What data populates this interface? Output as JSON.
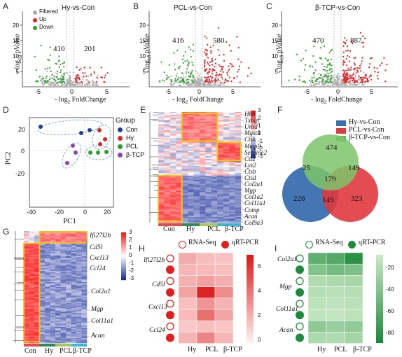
{
  "panels": {
    "A": {
      "letter": "A",
      "title": "Hy-vs-Con",
      "legend": [
        {
          "label": "Filtered",
          "color": "#a8a8a8"
        },
        {
          "label": "Up",
          "color": "#e02020"
        },
        {
          "label": "Down",
          "color": "#2f9e2f"
        }
      ],
      "down_count": "410",
      "up_count": "201",
      "xticks": [
        "-5",
        "0",
        "5"
      ],
      "yticks": [
        "5",
        "10",
        "15",
        "20"
      ]
    },
    "B": {
      "letter": "B",
      "title": "PCL-vs-Con",
      "down_count": "416",
      "up_count": "580",
      "xticks": [
        "-5",
        "0",
        "5"
      ],
      "yticks": [
        "5",
        "10",
        "15",
        "20"
      ]
    },
    "C": {
      "letter": "C",
      "title": "β-TCP-vs-Con",
      "down_count": "470",
      "up_count": "887",
      "xticks": [
        "-5",
        "0",
        "5"
      ],
      "yticks": [
        "5",
        "10",
        "15",
        "20"
      ]
    },
    "D": {
      "letter": "D",
      "legend_title": "Group",
      "groups": [
        {
          "label": "Con",
          "color": "#1f3f8f"
        },
        {
          "label": "Hy",
          "color": "#d62728"
        },
        {
          "label": "PCL",
          "color": "#2ca02c"
        },
        {
          "label": "β-TCP",
          "color": "#8e44ad"
        }
      ],
      "xticks": [
        "-40",
        "-20",
        "0",
        "20"
      ],
      "yticks": [
        "-20",
        "0",
        "20"
      ],
      "xlabel": "PC1",
      "ylabel": "PC2"
    },
    "E": {
      "letter": "E",
      "genes": [
        "Hbb",
        "Txnip",
        "Urod",
        "Mgst3",
        "Ctsk",
        "Mmp9",
        "Serpine2",
        "Ctsz",
        "Lyz2",
        "Ctsb",
        "Ctsd",
        "Col2a1",
        "Mgp",
        "Col1a2",
        "Col11a1",
        "Comp",
        "Acan",
        "Col9a3"
      ],
      "groups": [
        "Con",
        "Hy",
        "PCL",
        "β-TCP"
      ],
      "scale": [
        "3",
        "2",
        "1",
        "0",
        "-1",
        "-2",
        "-3"
      ]
    },
    "F": {
      "letter": "F",
      "legend": [
        {
          "label": "Hy-vs-Con",
          "color": "#3a6fb0"
        },
        {
          "label": "PCL-vs-Con",
          "color": "#e0393e"
        },
        {
          "label": "β-TCP-vs-Con",
          "color": "#5cb85c"
        }
      ],
      "values": {
        "tcp_only": "474",
        "hy_tcp": "25",
        "pcl_tcp": "149",
        "all": "179",
        "hy_only": "226",
        "hy_pcl": "149",
        "pcl_only": "323"
      }
    },
    "G": {
      "letter": "G",
      "genes_top": [
        "Ifi27l2b",
        "Cd5l",
        "Cxcl13",
        "Ccl24"
      ],
      "genes_bottom": [
        "Col2a1",
        "Mgp",
        "Col11a1",
        "Acan"
      ],
      "groups": [
        "Con",
        "Hy",
        "PCL",
        "β-TCP"
      ],
      "scale": [
        "3",
        "2",
        "1",
        "0",
        "-1",
        "-2",
        "-3"
      ]
    },
    "H": {
      "letter": "H",
      "legend": [
        {
          "label": "RNA-Seq",
          "style": "open"
        },
        {
          "label": "qRT-PCR",
          "style": "filled"
        }
      ],
      "color": "#e02020",
      "genes": [
        "Ifi27l2b",
        "Cd5l",
        "Cxcl13",
        "Ccl24"
      ],
      "groups": [
        "Hy",
        "PCL",
        "β-TCP"
      ],
      "scale": [
        "6",
        "4",
        "2",
        "0"
      ],
      "values": [
        [
          2.2,
          1.6,
          1.4
        ],
        [
          1.8,
          1.7,
          1.5
        ],
        [
          2.0,
          2.6,
          2.1
        ],
        [
          2.5,
          6.8,
          3.2
        ],
        [
          1.5,
          3.0,
          1.9
        ],
        [
          1.7,
          4.2,
          2.4
        ],
        [
          1.2,
          1.5,
          1.3
        ],
        [
          1.9,
          3.5,
          1.8
        ]
      ]
    },
    "I": {
      "letter": "I",
      "legend": [
        {
          "label": "RNA-Seq",
          "style": "open"
        },
        {
          "label": "qRT-PCR",
          "style": "filled"
        }
      ],
      "color": "#1e8a3e",
      "genes": [
        "Col2a1",
        "Mgp",
        "Col11a1",
        "Acan"
      ],
      "groups": [
        "Hy",
        "PCL",
        "β-TCP"
      ],
      "scale": [
        "-20",
        "-40",
        "-60",
        "-80"
      ],
      "values": [
        [
          -55,
          -60,
          -78
        ],
        [
          -40,
          -45,
          -42
        ],
        [
          -20,
          -22,
          -24
        ],
        [
          -18,
          -16,
          -18
        ],
        [
          -15,
          -14,
          -16
        ],
        [
          -14,
          -12,
          -15
        ],
        [
          -35,
          -30,
          -33
        ],
        [
          -22,
          -20,
          -25
        ]
      ]
    }
  }
}
